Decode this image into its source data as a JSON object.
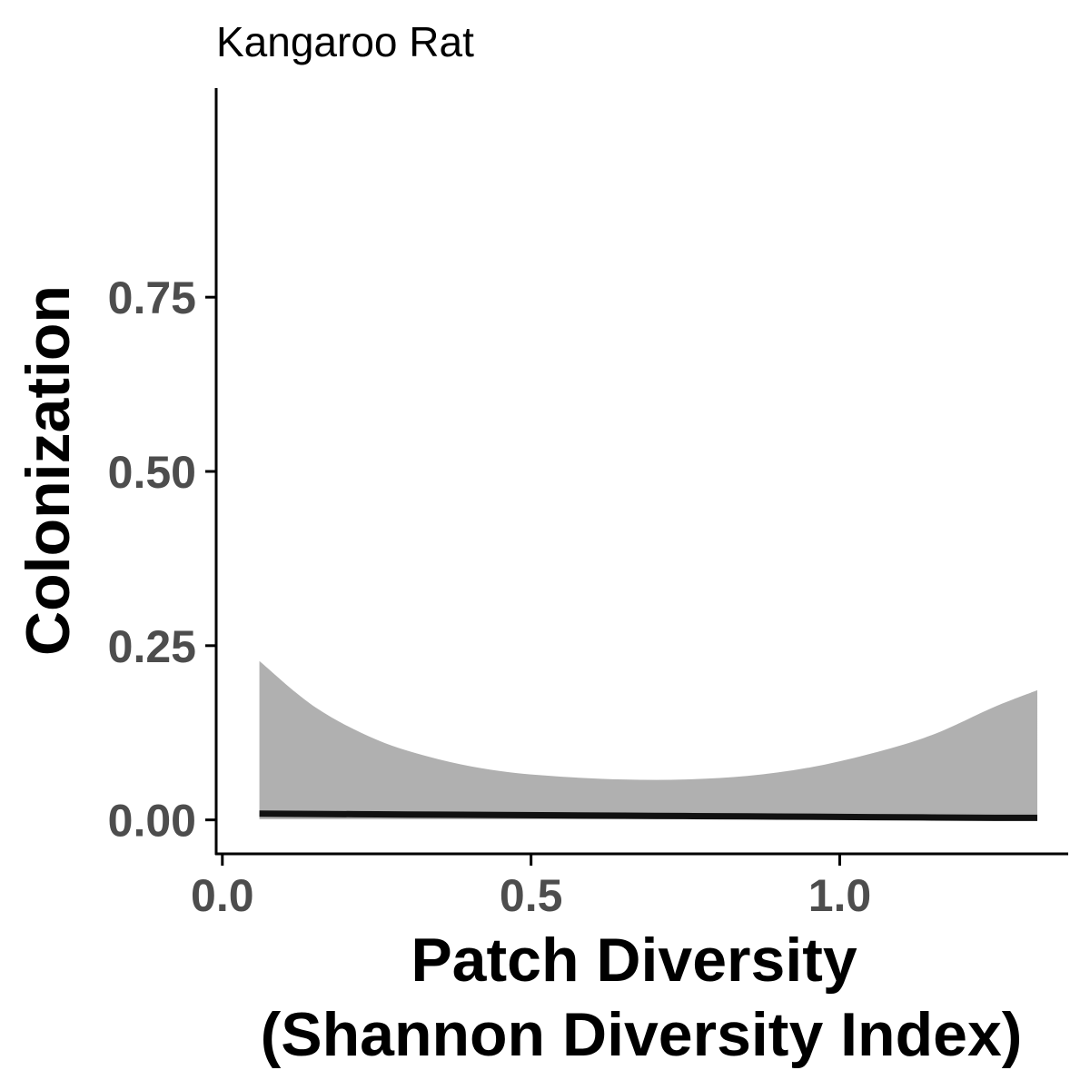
{
  "chart_data": {
    "type": "line",
    "title": "Kangaroo Rat",
    "xlabel": "Patch Diversity",
    "xlabel_line2": "(Shannon Diversity Index)",
    "ylabel": "Colonization",
    "xlim": [
      -0.01,
      1.37
    ],
    "ylim": [
      -0.05,
      1.05
    ],
    "x_ticks": [
      0.0,
      0.5,
      1.0
    ],
    "x_tick_labels": [
      "0.0",
      "0.5",
      "1.0"
    ],
    "y_ticks": [
      0.0,
      0.25,
      0.5,
      0.75
    ],
    "y_tick_labels": [
      "0.00",
      "0.25",
      "0.50",
      "0.75"
    ],
    "grid": false,
    "legend": "none",
    "colors": {
      "line": "#111111",
      "ribbon": "#b0b0b0",
      "axis": "#000000",
      "tick_text": "#4d4d4d"
    },
    "series": [
      {
        "x": [
          0.06,
          0.15,
          0.25,
          0.35,
          0.45,
          0.55,
          0.65,
          0.75,
          0.85,
          0.95,
          1.05,
          1.15,
          1.25,
          1.32
        ],
        "y": [
          0.009,
          0.0085,
          0.008,
          0.0075,
          0.007,
          0.0065,
          0.006,
          0.0055,
          0.005,
          0.0045,
          0.004,
          0.0035,
          0.003,
          0.003
        ],
        "lower": [
          0.001,
          0.001,
          0.001,
          0.001,
          0.001,
          0.001,
          0.001,
          0.001,
          0.001,
          0.001,
          0.001,
          0.001,
          0.001,
          0.001
        ],
        "upper": [
          0.228,
          0.162,
          0.115,
          0.087,
          0.07,
          0.062,
          0.058,
          0.058,
          0.063,
          0.075,
          0.095,
          0.122,
          0.162,
          0.186
        ]
      }
    ]
  }
}
